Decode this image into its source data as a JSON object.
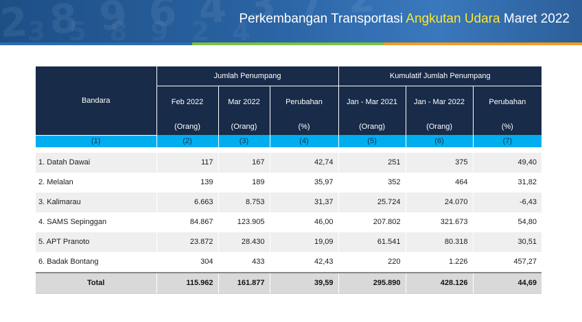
{
  "header": {
    "title_prefix": "Perkembangan Transportasi ",
    "title_highlight": "Angkutan Udara",
    "title_suffix": " Maret 2022",
    "decor_digits": "2 8 9 6 4 3 7 2",
    "decor_digits_2": "3 5 8 9 2 4"
  },
  "colors": {
    "header_bg": "#2a63a3",
    "title_highlight": "#ffe72a",
    "table_header_bg": "#182b49",
    "number_row_bg": "#00aeef",
    "stripe": [
      "#2f6bb0",
      "#7cc242",
      "#f59b1e"
    ]
  },
  "table": {
    "group_headers": {
      "jumlah": "Jumlah Penumpang",
      "kumulatif": "Kumulatif Jumlah Penumpang"
    },
    "columns": [
      {
        "label": "Bandara",
        "unit": "",
        "num": "(1)"
      },
      {
        "label": "Feb 2022",
        "unit": "(Orang)",
        "num": "(2)"
      },
      {
        "label": "Mar 2022",
        "unit": "(Orang)",
        "num": "(3)"
      },
      {
        "label": "Perubahan",
        "unit": "(%)",
        "num": "(4)"
      },
      {
        "label": "Jan - Mar 2021",
        "unit": "(Orang)",
        "num": "(5)"
      },
      {
        "label": "Jan - Mar 2022",
        "unit": "(Orang)",
        "num": "(6)"
      },
      {
        "label": "Perubahan",
        "unit": "(%)",
        "num": "(7)"
      }
    ],
    "rows": [
      {
        "name": "1. Datah Dawai",
        "feb": "117",
        "mar": "167",
        "chg": "42,74",
        "cum21": "251",
        "cum22": "375",
        "cumchg": "49,40"
      },
      {
        "name": "2. Melalan",
        "feb": "139",
        "mar": "189",
        "chg": "35,97",
        "cum21": "352",
        "cum22": "464",
        "cumchg": "31,82"
      },
      {
        "name": "3. Kalimarau",
        "feb": "6.663",
        "mar": "8.753",
        "chg": "31,37",
        "cum21": "25.724",
        "cum22": "24.070",
        "cumchg": "-6,43"
      },
      {
        "name": "4. SAMS Sepinggan",
        "feb": "84.867",
        "mar": "123.905",
        "chg": "46,00",
        "cum21": "207.802",
        "cum22": "321.673",
        "cumchg": "54,80"
      },
      {
        "name": "5. APT Pranoto",
        "feb": "23.872",
        "mar": "28.430",
        "chg": "19,09",
        "cum21": "61.541",
        "cum22": "80.318",
        "cumchg": "30,51"
      },
      {
        "name": "6. Badak Bontang",
        "feb": "304",
        "mar": "433",
        "chg": "42,43",
        "cum21": "220",
        "cum22": "1.226",
        "cumchg": "457,27"
      }
    ],
    "total": {
      "name": "Total",
      "feb": "115.962",
      "mar": "161.877",
      "chg": "39,59",
      "cum21": "295.890",
      "cum22": "428.126",
      "cumchg": "44,69"
    }
  }
}
